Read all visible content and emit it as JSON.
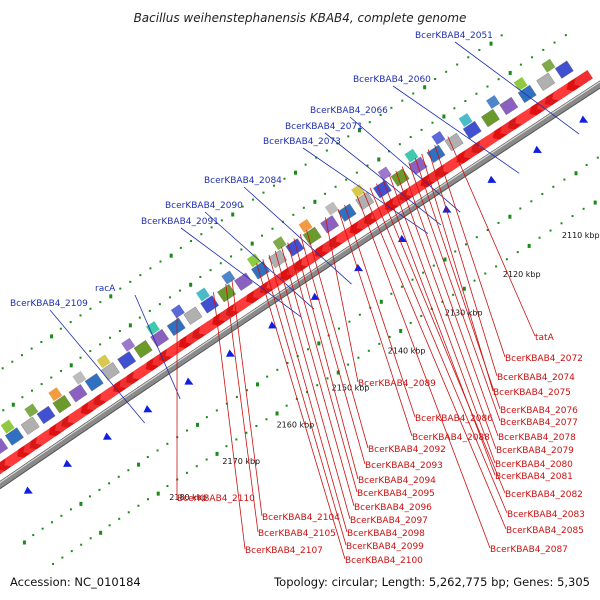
{
  "title": "Bacillus weihenstephanensis KBAB4, complete genome",
  "footer": {
    "accession": "Accession: NC_010184",
    "topology": "Topology: circular; Length: 5,262,775 bp; Genes: 5,305"
  },
  "ticks": [
    "2110 kbp",
    "2120 kbp",
    "2130 kbp",
    "2140 kbp",
    "2150 kbp",
    "2160 kbp",
    "2170 kbp",
    "2180 kbp"
  ],
  "blue_labels": [
    "BcerKBAB4_2051",
    "BcerKBAB4_2060",
    "BcerKBAB4_2066",
    "BcerKBAB4_2071",
    "BcerKBAB4_2073",
    "BcerKBAB4_2084",
    "BcerKBAB4_2090",
    "BcerKBAB4_2091",
    "racA",
    "BcerKBAB4_2109"
  ],
  "red_labels": [
    "tatA",
    "BcerKBAB4_2072",
    "BcerKBAB4_2074",
    "BcerKBAB4_2075",
    "BcerKBAB4_2076",
    "BcerKBAB4_2077",
    "BcerKBAB4_2078",
    "BcerKBAB4_2079",
    "BcerKBAB4_2080",
    "BcerKBAB4_2081",
    "BcerKBAB4_2082",
    "BcerKBAB4_2083",
    "BcerKBAB4_2085",
    "BcerKBAB4_2087",
    "BcerKBAB4_2086",
    "BcerKBAB4_2088",
    "BcerKBAB4_2089",
    "BcerKBAB4_2092",
    "BcerKBAB4_2093",
    "BcerKBAB4_2094",
    "BcerKBAB4_2095",
    "BcerKBAB4_2096",
    "BcerKBAB4_2097",
    "BcerKBAB4_2098",
    "BcerKBAB4_2099",
    "BcerKBAB4_2100",
    "BcerKBAB4_2104",
    "BcerKBAB4_2105",
    "BcerKBAB4_2107",
    "BcerKBAB4_2110"
  ],
  "colors": {
    "title": "#222222",
    "blue_label": "#1f2fb0",
    "red_label": "#cc1010",
    "backbone": "#8a8a8a",
    "gene_red": "#e01010",
    "gene_blue": "#1020e0",
    "tick_green": "#1a8a1a"
  }
}
